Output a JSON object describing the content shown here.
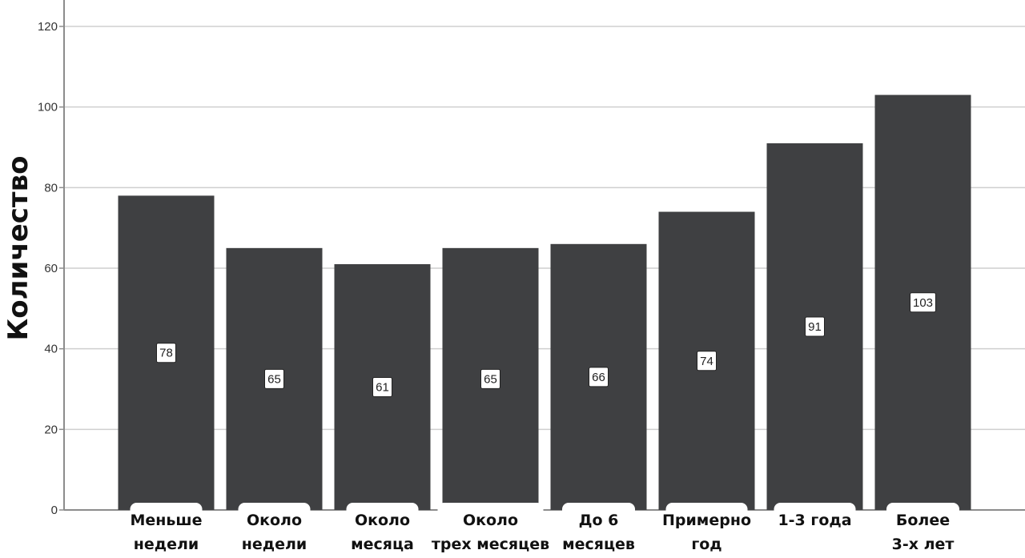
{
  "chart_data": {
    "type": "bar",
    "ylabel": "Количество",
    "xlabel": "",
    "ylim": [
      0,
      120
    ],
    "yticks": [
      0,
      20,
      40,
      60,
      80,
      100,
      120
    ],
    "grid": true,
    "categories": [
      [
        "Меньше",
        "недели"
      ],
      [
        "Около",
        "недели"
      ],
      [
        "Около",
        "месяца"
      ],
      [
        "Около",
        "трех месяцев"
      ],
      [
        "До 6",
        "месяцев"
      ],
      [
        "Примерно",
        "год"
      ],
      [
        "1-3 года"
      ],
      [
        "Более",
        "3-х лет"
      ]
    ],
    "values": [
      78,
      65,
      61,
      65,
      66,
      74,
      91,
      103
    ],
    "data_labels": [
      "78",
      "65",
      "61",
      "65",
      "66",
      "74",
      "91",
      "103"
    ]
  },
  "colors": {
    "bar": "#3f4042",
    "grid": "#cfcfcf",
    "axis": "#8c8c8c",
    "label_box": "#ffffff"
  }
}
